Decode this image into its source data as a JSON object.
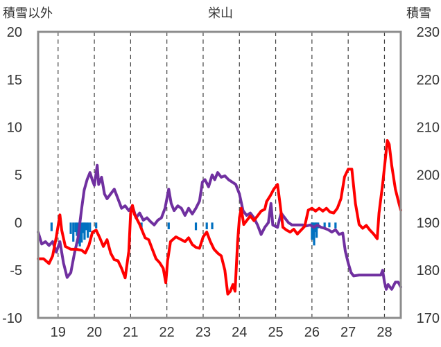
{
  "chart_data": {
    "type": "line",
    "title": "栄山",
    "left_axis": {
      "label": "積雪以外",
      "ylim": [
        -10,
        20
      ],
      "ticks": [
        20,
        15,
        10,
        5,
        0,
        -5,
        -10
      ]
    },
    "right_axis": {
      "label": "積雪",
      "ylim": [
        170,
        230
      ],
      "ticks": [
        230,
        220,
        210,
        200,
        190,
        180,
        170
      ]
    },
    "x_axis": {
      "xlim": [
        18.45,
        28.45
      ],
      "day_separators": [
        19,
        20,
        21,
        22,
        23,
        24,
        25,
        26,
        27,
        28
      ],
      "tick_labels": [
        {
          "x": 19,
          "label": "19"
        },
        {
          "x": 20,
          "label": "20"
        },
        {
          "x": 21,
          "label": "21"
        },
        {
          "x": 22,
          "label": "22"
        },
        {
          "x": 23,
          "label": "23"
        },
        {
          "x": 24,
          "label": "24"
        },
        {
          "x": 25,
          "label": "25"
        },
        {
          "x": 26,
          "label": "26"
        },
        {
          "x": 27,
          "label": "27"
        },
        {
          "x": 28,
          "label": "28"
        }
      ]
    },
    "grid": "dashed-vertical",
    "series": [
      {
        "axis": "left",
        "color": "#ff0000",
        "points": [
          [
            18.45,
            -3.8
          ],
          [
            18.6,
            -3.8
          ],
          [
            18.75,
            -4.3
          ],
          [
            18.85,
            -3.5
          ],
          [
            18.95,
            -1.5
          ],
          [
            19.05,
            0.8
          ],
          [
            19.1,
            -0.8
          ],
          [
            19.2,
            -2.5
          ],
          [
            19.35,
            -2.8
          ],
          [
            19.5,
            -2.8
          ],
          [
            19.65,
            -2.9
          ],
          [
            19.75,
            -3.2
          ],
          [
            19.85,
            -2.4
          ],
          [
            19.95,
            -1.0
          ],
          [
            20.05,
            -0.8
          ],
          [
            20.15,
            -1.6
          ],
          [
            20.25,
            -2.5
          ],
          [
            20.35,
            -1.8
          ],
          [
            20.45,
            -3.2
          ],
          [
            20.55,
            -3.9
          ],
          [
            20.65,
            -4.0
          ],
          [
            20.75,
            -4.8
          ],
          [
            20.85,
            -5.8
          ],
          [
            20.95,
            -3.0
          ],
          [
            21.0,
            1.0
          ],
          [
            21.05,
            1.8
          ],
          [
            21.1,
            0.9
          ],
          [
            21.25,
            -0.2
          ],
          [
            21.4,
            -1.6
          ],
          [
            21.5,
            -1.8
          ],
          [
            21.6,
            -2.8
          ],
          [
            21.7,
            -3.8
          ],
          [
            21.8,
            -4.2
          ],
          [
            21.9,
            -4.8
          ],
          [
            21.97,
            -6.3
          ],
          [
            22.02,
            -4.0
          ],
          [
            22.1,
            -2.0
          ],
          [
            22.25,
            -1.5
          ],
          [
            22.4,
            -1.8
          ],
          [
            22.5,
            -2.0
          ],
          [
            22.6,
            -1.6
          ],
          [
            22.7,
            -2.3
          ],
          [
            22.8,
            -2.6
          ],
          [
            22.9,
            -2.7
          ],
          [
            23.0,
            -1.5
          ],
          [
            23.1,
            -1.0
          ],
          [
            23.2,
            -2.0
          ],
          [
            23.3,
            -2.8
          ],
          [
            23.4,
            -3.2
          ],
          [
            23.5,
            -3.5
          ],
          [
            23.6,
            -5.0
          ],
          [
            23.68,
            -7.5
          ],
          [
            23.75,
            -7.2
          ],
          [
            23.82,
            -6.5
          ],
          [
            23.88,
            -7.2
          ],
          [
            23.95,
            -2.0
          ],
          [
            24.0,
            0.5
          ],
          [
            24.05,
            1.5
          ],
          [
            24.12,
            -0.2
          ],
          [
            24.2,
            0.2
          ],
          [
            24.3,
            0.7
          ],
          [
            24.4,
            0.2
          ],
          [
            24.5,
            0.7
          ],
          [
            24.6,
            1.2
          ],
          [
            24.7,
            1.4
          ],
          [
            24.75,
            2.2
          ],
          [
            24.85,
            2.8
          ],
          [
            24.95,
            3.5
          ],
          [
            25.05,
            4.0
          ],
          [
            25.12,
            2.0
          ],
          [
            25.2,
            -0.5
          ],
          [
            25.3,
            -0.8
          ],
          [
            25.4,
            -1.0
          ],
          [
            25.5,
            -0.7
          ],
          [
            25.6,
            -1.2
          ],
          [
            25.7,
            -0.8
          ],
          [
            25.8,
            -0.4
          ],
          [
            25.9,
            1.3
          ],
          [
            26.0,
            1.5
          ],
          [
            26.1,
            1.2
          ],
          [
            26.2,
            1.5
          ],
          [
            26.3,
            1.2
          ],
          [
            26.4,
            1.5
          ],
          [
            26.5,
            1.1
          ],
          [
            26.6,
            1.0
          ],
          [
            26.7,
            1.5
          ],
          [
            26.8,
            2.5
          ],
          [
            26.9,
            4.8
          ],
          [
            27.0,
            5.6
          ],
          [
            27.1,
            5.6
          ],
          [
            27.2,
            2.0
          ],
          [
            27.3,
            -0.2
          ],
          [
            27.4,
            -0.6
          ],
          [
            27.5,
            -0.3
          ],
          [
            27.6,
            -0.8
          ],
          [
            27.7,
            -1.2
          ],
          [
            27.8,
            -1.7
          ],
          [
            27.85,
            1.0
          ],
          [
            27.95,
            4.0
          ],
          [
            28.02,
            6.5
          ],
          [
            28.08,
            8.6
          ],
          [
            28.13,
            8.2
          ],
          [
            28.2,
            6.0
          ],
          [
            28.3,
            3.5
          ],
          [
            28.4,
            2.0
          ],
          [
            28.45,
            1.3
          ]
        ]
      },
      {
        "axis": "right",
        "color": "#7030a0",
        "points": [
          [
            18.45,
            188.0
          ],
          [
            18.55,
            185.5
          ],
          [
            18.65,
            186.0
          ],
          [
            18.75,
            185.2
          ],
          [
            18.85,
            186.0
          ],
          [
            18.95,
            183.8
          ],
          [
            19.05,
            186.0
          ],
          [
            19.15,
            181.5
          ],
          [
            19.25,
            178.5
          ],
          [
            19.35,
            179.5
          ],
          [
            19.45,
            183.5
          ],
          [
            19.55,
            186.8
          ],
          [
            19.65,
            193.0
          ],
          [
            19.72,
            196.8
          ],
          [
            19.8,
            199.0
          ],
          [
            19.88,
            200.5
          ],
          [
            19.95,
            198.8
          ],
          [
            20.0,
            197.8
          ],
          [
            20.08,
            202.0
          ],
          [
            20.12,
            198.0
          ],
          [
            20.2,
            199.5
          ],
          [
            20.28,
            196.0
          ],
          [
            20.35,
            195.0
          ],
          [
            20.45,
            196.0
          ],
          [
            20.55,
            197.0
          ],
          [
            20.65,
            195.0
          ],
          [
            20.75,
            193.0
          ],
          [
            20.85,
            193.5
          ],
          [
            20.95,
            192.5
          ],
          [
            21.05,
            193.5
          ],
          [
            21.15,
            191.0
          ],
          [
            21.25,
            192.0
          ],
          [
            21.35,
            190.5
          ],
          [
            21.45,
            191.0
          ],
          [
            21.55,
            190.2
          ],
          [
            21.65,
            189.5
          ],
          [
            21.75,
            190.5
          ],
          [
            21.85,
            191.0
          ],
          [
            21.95,
            193.0
          ],
          [
            22.05,
            197.0
          ],
          [
            22.12,
            194.0
          ],
          [
            22.2,
            192.5
          ],
          [
            22.3,
            193.5
          ],
          [
            22.4,
            193.0
          ],
          [
            22.5,
            191.5
          ],
          [
            22.6,
            193.0
          ],
          [
            22.7,
            191.8
          ],
          [
            22.8,
            193.0
          ],
          [
            22.9,
            194.5
          ],
          [
            22.98,
            198.5
          ],
          [
            23.05,
            199.0
          ],
          [
            23.15,
            197.5
          ],
          [
            23.25,
            200.0
          ],
          [
            23.32,
            199.0
          ],
          [
            23.4,
            200.5
          ],
          [
            23.5,
            199.5
          ],
          [
            23.6,
            199.8
          ],
          [
            23.7,
            199.0
          ],
          [
            23.8,
            198.5
          ],
          [
            23.9,
            198.0
          ],
          [
            24.0,
            196.0
          ],
          [
            24.1,
            192.5
          ],
          [
            24.2,
            191.5
          ],
          [
            24.3,
            192.0
          ],
          [
            24.4,
            191.0
          ],
          [
            24.5,
            189.5
          ],
          [
            24.6,
            187.5
          ],
          [
            24.7,
            189.0
          ],
          [
            24.8,
            190.0
          ],
          [
            24.87,
            194.0
          ],
          [
            24.92,
            189.5
          ],
          [
            25.05,
            189.0
          ],
          [
            25.15,
            192.0
          ],
          [
            25.25,
            191.0
          ],
          [
            25.35,
            190.0
          ],
          [
            25.45,
            189.5
          ],
          [
            25.55,
            189.5
          ],
          [
            25.65,
            189.5
          ],
          [
            25.75,
            189.5
          ],
          [
            25.85,
            189.3
          ],
          [
            25.95,
            189.5
          ],
          [
            26.05,
            189.0
          ],
          [
            26.15,
            189.5
          ],
          [
            26.25,
            189.0
          ],
          [
            26.35,
            188.8
          ],
          [
            26.45,
            188.5
          ],
          [
            26.55,
            188.0
          ],
          [
            26.65,
            188.5
          ],
          [
            26.75,
            187.5
          ],
          [
            26.85,
            187.8
          ],
          [
            26.92,
            184.0
          ],
          [
            27.0,
            181.5
          ],
          [
            27.08,
            179.5
          ],
          [
            27.15,
            178.8
          ],
          [
            27.3,
            179.0
          ],
          [
            27.5,
            179.0
          ],
          [
            27.7,
            179.0
          ],
          [
            27.9,
            179.0
          ],
          [
            27.95,
            180.0
          ],
          [
            28.0,
            177.5
          ],
          [
            28.05,
            176.0
          ],
          [
            28.1,
            177.0
          ],
          [
            28.2,
            176.0
          ],
          [
            28.3,
            177.5
          ],
          [
            28.38,
            177.5
          ],
          [
            28.45,
            176.5
          ]
        ]
      }
    ],
    "bars": {
      "axis": "left",
      "color": "#0070c0",
      "values": [
        [
          18.82,
          -0.9
        ],
        [
          19.35,
          -1.2
        ],
        [
          19.42,
          -2.0
        ],
        [
          19.48,
          -1.0
        ],
        [
          19.52,
          -1.4
        ],
        [
          19.57,
          -2.2
        ],
        [
          19.6,
          -2.5
        ],
        [
          19.65,
          -2.1
        ],
        [
          19.7,
          -1.1
        ],
        [
          19.73,
          -1.8
        ],
        [
          19.78,
          -0.8
        ],
        [
          19.82,
          -1.6
        ],
        [
          19.88,
          -1.0
        ],
        [
          20.05,
          -0.6
        ],
        [
          21.3,
          -0.8
        ],
        [
          22.05,
          -0.7
        ],
        [
          22.8,
          -0.8
        ],
        [
          23.1,
          -0.7
        ],
        [
          23.25,
          -0.7
        ],
        [
          26.0,
          -1.8
        ],
        [
          26.03,
          -1.3
        ],
        [
          26.06,
          -2.4
        ],
        [
          26.1,
          -1.0
        ],
        [
          26.13,
          -1.6
        ],
        [
          26.17,
          -0.6
        ],
        [
          26.35,
          -0.5
        ],
        [
          26.48,
          -0.5
        ],
        [
          26.65,
          -0.6
        ]
      ]
    }
  }
}
